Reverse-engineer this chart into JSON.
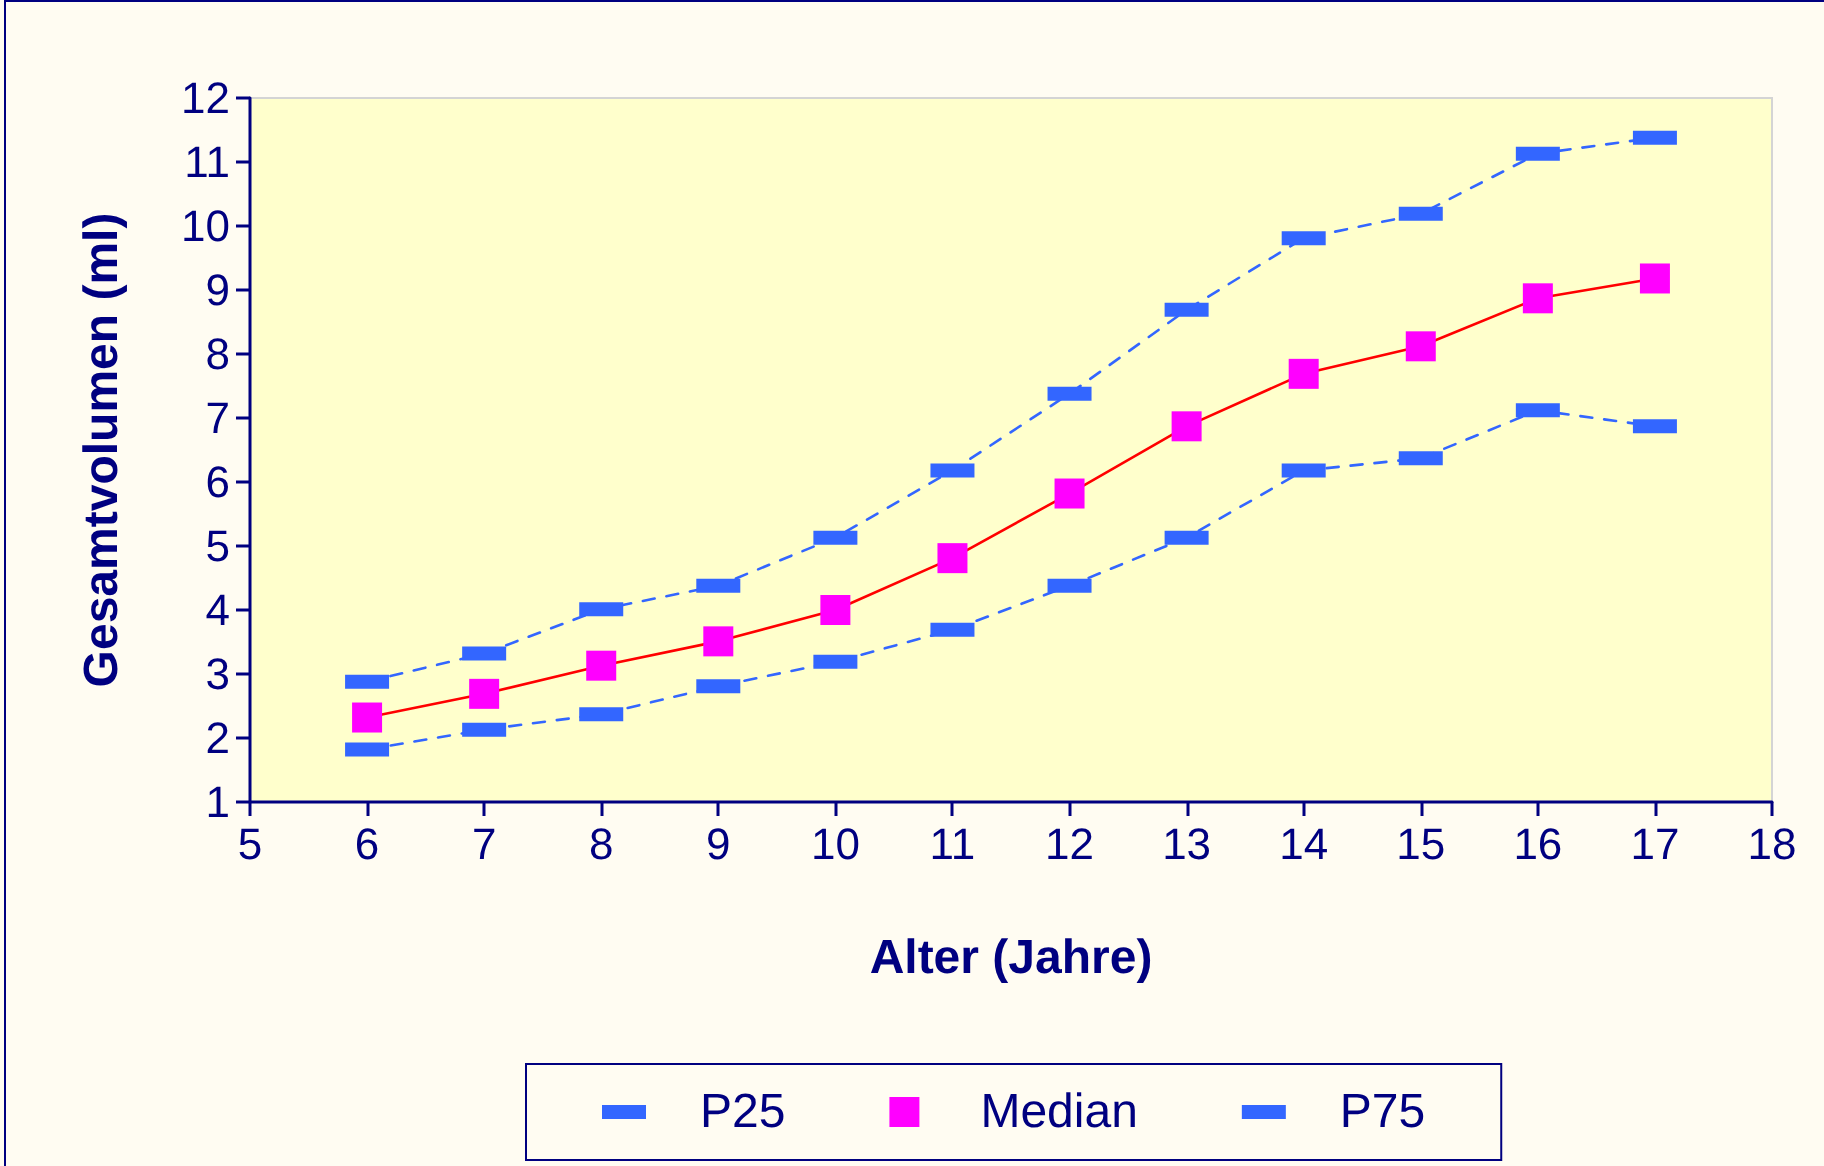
{
  "chart_data": {
    "type": "line",
    "xlabel": "Alter (Jahre)",
    "ylabel": "Gesamtvolumen (ml)",
    "x": [
      6,
      7,
      8,
      9,
      10,
      11,
      12,
      13,
      14,
      15,
      16,
      17
    ],
    "series": [
      {
        "name": "P25",
        "color": "#3366ff",
        "marker": "square",
        "line_style": "dashed",
        "values": [
          1.82,
          2.13,
          2.37,
          2.81,
          3.19,
          3.69,
          4.38,
          5.13,
          6.18,
          6.37,
          7.12,
          6.87
        ]
      },
      {
        "name": "Median",
        "color": "#ff0000",
        "colors": [
          "#ff00ff",
          "#ff00ff",
          "#ff00ff",
          "#ff00ff",
          "#ff00ff",
          "#ff00ff",
          "#ff00ff",
          "#ff00ff",
          "#ff00ff",
          "#ff00ff",
          "#ff00ff",
          "#ff00ff"
        ],
        "marker": "square",
        "line_style": "solid",
        "values": [
          2.32,
          2.69,
          3.13,
          3.51,
          4.0,
          4.81,
          5.82,
          6.87,
          7.69,
          8.12,
          8.87,
          9.18
        ]
      },
      {
        "name": "P75",
        "color": "#3366ff",
        "marker": "square",
        "line_style": "dashed",
        "values": [
          2.88,
          3.32,
          4.01,
          4.38,
          5.13,
          6.18,
          7.38,
          8.69,
          9.81,
          10.19,
          11.13,
          11.38
        ]
      }
    ],
    "xlim": [
      5,
      18
    ],
    "xticks": [
      5,
      6,
      7,
      8,
      9,
      10,
      11,
      12,
      13,
      14,
      15,
      16,
      17,
      18
    ],
    "ylim": [
      1,
      12
    ],
    "yticks": [
      1,
      2,
      3,
      4,
      5,
      6,
      7,
      8,
      9,
      10,
      11,
      12
    ],
    "grid": false,
    "legend": "bottom"
  }
}
